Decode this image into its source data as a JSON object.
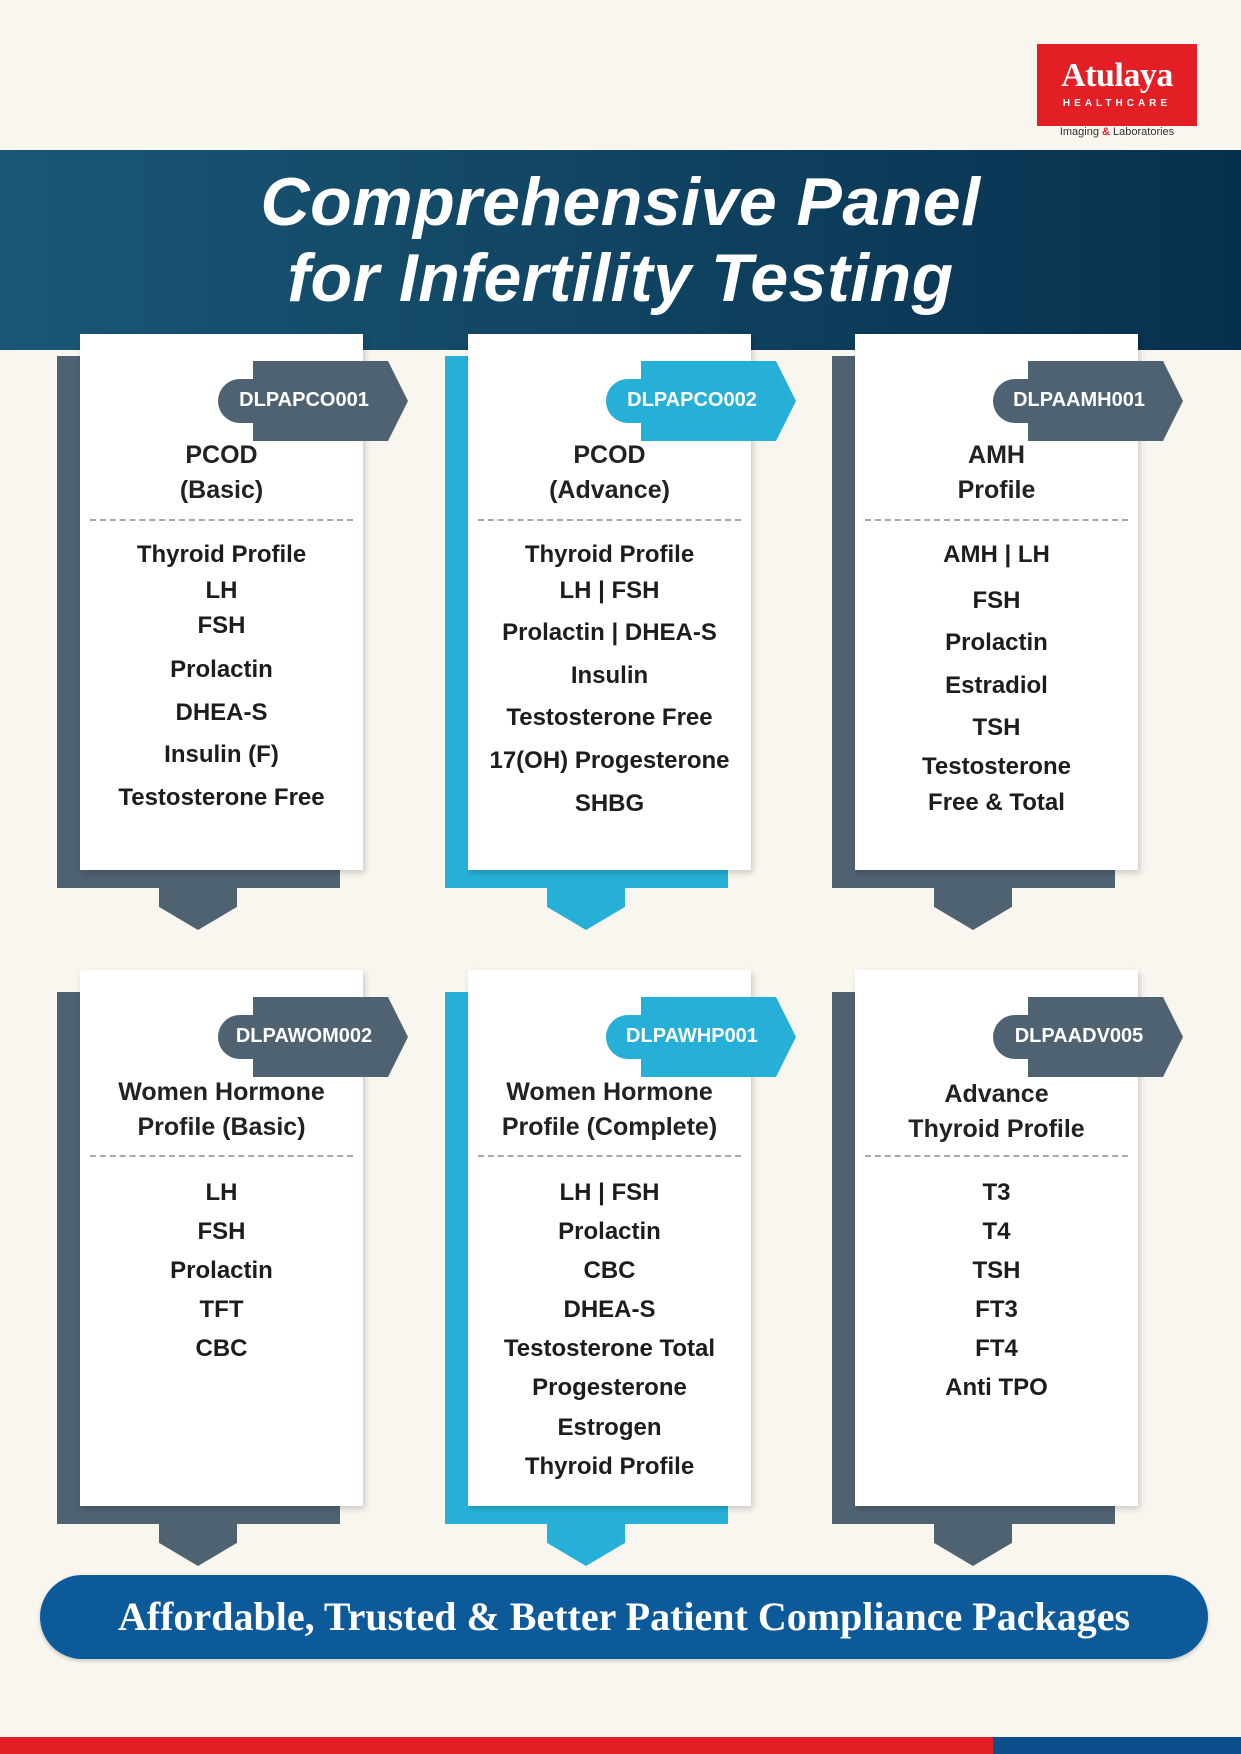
{
  "logo": {
    "name": "Atulaya",
    "subtitle": "HEALTHCARE",
    "tagline_part1": "Imaging ",
    "tagline_amp": "&",
    "tagline_part2": " Laboratories"
  },
  "header": {
    "title_line1": "Comprehensive Panel",
    "title_line2": "for Infertility Testing"
  },
  "colors": {
    "slate": "#4f6272",
    "blue": "#27b0d7",
    "banner": "#0f4260",
    "brand_red": "#e31e24",
    "footer_blue": "#0d5a9b"
  },
  "packages": [
    {
      "code": "DLPAPCO001",
      "title_line1": "PCOD",
      "title_line2": "(Basic)",
      "items": [
        "Thyroid Profile",
        "LH",
        "FSH",
        "Prolactin",
        "DHEA-S",
        "Insulin (F)",
        "Testosterone Free"
      ]
    },
    {
      "code": "DLPAPCO002",
      "title_line1": "PCOD",
      "title_line2": "(Advance)",
      "items": [
        "Thyroid Profile",
        "LH  | FSH",
        "Prolactin  |  DHEA-S",
        "Insulin",
        "Testosterone Free",
        "17(OH) Progesterone",
        "SHBG"
      ]
    },
    {
      "code": "DLPAAMH001",
      "title_line1": "AMH",
      "title_line2": "Profile",
      "items": [
        "AMH  |  LH",
        "FSH",
        "Prolactin",
        "Estradiol",
        "TSH",
        "Testosterone",
        "Free & Total"
      ]
    },
    {
      "code": "DLPAWOM002",
      "title_line1": "Women Hormone",
      "title_line2": "Profile (Basic)",
      "items": [
        "LH",
        "FSH",
        "Prolactin",
        "TFT",
        "CBC"
      ]
    },
    {
      "code": "DLPAWHP001",
      "title_line1": "Women Hormone",
      "title_line2": "Profile (Complete)",
      "items": [
        "LH  |  FSH",
        "Prolactin",
        "CBC",
        "DHEA-S",
        "Testosterone Total",
        "Progesterone",
        "Estrogen",
        "Thyroid Profile"
      ]
    },
    {
      "code": "DLPAADV005",
      "title_line1": "Advance",
      "title_line2": "Thyroid Profile",
      "items": [
        "T3",
        "T4",
        "TSH",
        "FT3",
        "FT4",
        "Anti TPO"
      ]
    }
  ],
  "footer": {
    "tagline": "Affordable, Trusted & Better Patient Compliance Packages"
  }
}
